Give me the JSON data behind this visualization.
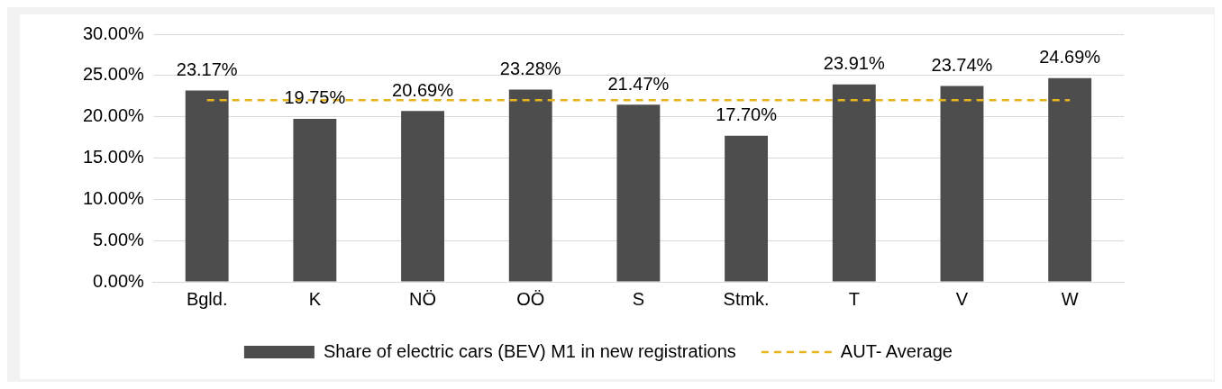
{
  "chart_data": {
    "type": "bar",
    "categories": [
      "Bgld.",
      "K",
      "NÖ",
      "OÖ",
      "S",
      "Stmk.",
      "T",
      "V",
      "W"
    ],
    "series": [
      {
        "name": "Share of electric cars (BEV) M1 in new registrations",
        "color": "#4d4d4d",
        "values": [
          23.17,
          19.75,
          20.69,
          23.28,
          21.47,
          17.7,
          23.91,
          23.74,
          24.69
        ],
        "value_labels": [
          "23.17%",
          "19.75%",
          "20.69%",
          "23.28%",
          "21.47%",
          "17.70%",
          "23.91%",
          "23.74%",
          "24.69%"
        ]
      },
      {
        "name": "AUT- Average",
        "type": "line",
        "color": "#e6b41e",
        "line_style": "dashed",
        "marker": "none",
        "values": [
          22,
          22,
          22,
          22,
          22,
          22,
          22,
          22,
          22
        ]
      }
    ],
    "ylim": [
      0,
      30
    ],
    "yticks": [
      {
        "value": 0,
        "label": "0.00%"
      },
      {
        "value": 5,
        "label": "5.00%"
      },
      {
        "value": 10,
        "label": "10.00%"
      },
      {
        "value": 15,
        "label": "15.00%"
      },
      {
        "value": 20,
        "label": "20.00%"
      },
      {
        "value": 25,
        "label": "25.00%"
      },
      {
        "value": 30,
        "label": "30.00%"
      }
    ],
    "grid": "y",
    "legend": "bottom"
  }
}
